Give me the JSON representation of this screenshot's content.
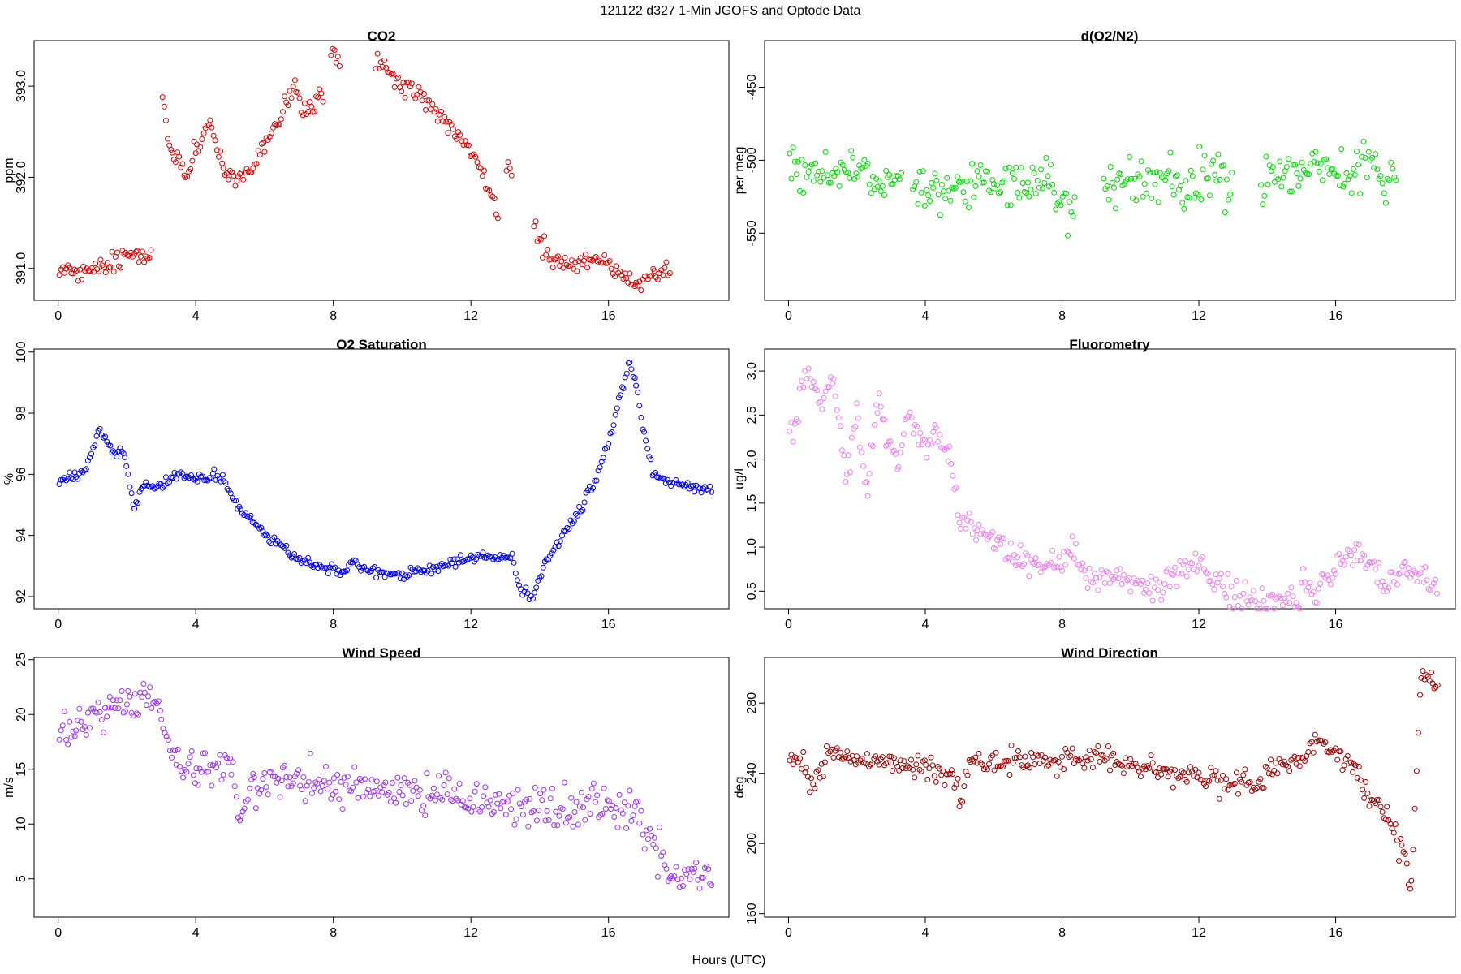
{
  "suptitle": "121122   d327   1-Min  JGOFS and Optode Data",
  "xlabel": "Hours (UTC)",
  "chart_data": [
    {
      "type": "scatter",
      "title": "CO2",
      "ylabel": "ppm",
      "color": "#dd0000",
      "xlim": [
        -0.7,
        19.5
      ],
      "ylim": [
        390.65,
        393.5
      ],
      "xticks": [
        0,
        4,
        8,
        12,
        16
      ],
      "yticks": [
        391.0,
        392.0,
        393.0
      ],
      "ytick_labels": [
        "391.0",
        "392.0",
        "393.0"
      ],
      "segments": [
        [
          0,
          391.0
        ],
        [
          0.7,
          390.95
        ],
        [
          1.5,
          391.05
        ],
        [
          2.3,
          391.15
        ],
        [
          2.7,
          391.18
        ],
        null,
        [
          3.0,
          392.9
        ],
        [
          3.3,
          392.3
        ],
        [
          3.7,
          392.0
        ],
        [
          4.0,
          392.3
        ],
        [
          4.4,
          392.6
        ],
        [
          4.8,
          392.1
        ],
        [
          5.2,
          391.95
        ],
        [
          5.6,
          392.1
        ],
        [
          6.0,
          392.4
        ],
        [
          6.4,
          392.6
        ],
        [
          6.9,
          393.0
        ],
        [
          7.1,
          392.7
        ],
        [
          7.4,
          392.8
        ],
        [
          7.7,
          392.9
        ],
        null,
        [
          7.9,
          393.4
        ],
        [
          8.2,
          393.2
        ],
        null,
        [
          9.2,
          393.25
        ],
        [
          9.8,
          393.05
        ],
        [
          10.5,
          392.9
        ],
        [
          11.0,
          392.7
        ],
        [
          11.5,
          392.5
        ],
        [
          12.0,
          392.3
        ],
        [
          12.4,
          392.0
        ],
        [
          12.8,
          391.6
        ],
        null,
        [
          13.0,
          392.2
        ],
        [
          13.2,
          392.0
        ],
        null,
        [
          13.8,
          391.5
        ],
        [
          14.3,
          391.1
        ],
        [
          15.0,
          391.05
        ],
        [
          15.5,
          391.1
        ],
        [
          16.0,
          391.05
        ],
        [
          16.5,
          390.9
        ],
        [
          16.8,
          390.8
        ],
        [
          17.3,
          390.95
        ],
        [
          17.8,
          390.95
        ]
      ],
      "noise": 0.05
    },
    {
      "type": "scatter",
      "title": "d(O2/N2)",
      "ylabel": "per meg",
      "color": "#00dd00",
      "xlim": [
        -0.7,
        19.5
      ],
      "ylim": [
        -596,
        -418
      ],
      "xticks": [
        0,
        4,
        8,
        12,
        16
      ],
      "yticks": [
        -550,
        -500,
        -450
      ],
      "ytick_labels": [
        "-550",
        "-500",
        "-450"
      ],
      "segments": [
        [
          0,
          -505
        ],
        [
          1.0,
          -510
        ],
        [
          2.0,
          -508
        ],
        [
          2.6,
          -512
        ],
        [
          3.3,
          -520
        ],
        null,
        [
          3.6,
          -518
        ],
        [
          5.0,
          -522
        ],
        [
          6.0,
          -512
        ],
        [
          7.0,
          -520
        ],
        [
          7.6,
          -515
        ],
        [
          8.1,
          -530
        ],
        [
          8.4,
          -532
        ],
        null,
        [
          9.2,
          -520
        ],
        [
          10.5,
          -515
        ],
        [
          12.0,
          -517
        ],
        [
          13.0,
          -510
        ],
        null,
        [
          13.8,
          -510
        ],
        [
          15.0,
          -512
        ],
        [
          16.5,
          -505
        ],
        [
          17.8,
          -510
        ]
      ],
      "noise": 8
    },
    {
      "type": "scatter",
      "title": "O2 Saturation",
      "ylabel": "%",
      "color": "#0000ee",
      "xlim": [
        -0.7,
        19.5
      ],
      "ylim": [
        91.6,
        100.1
      ],
      "xticks": [
        0,
        4,
        8,
        12,
        16
      ],
      "yticks": [
        92,
        94,
        96,
        98,
        100
      ],
      "ytick_labels": [
        "92",
        "94",
        "96",
        "98",
        "100"
      ],
      "segments": [
        [
          0,
          95.8
        ],
        [
          0.5,
          95.9
        ],
        [
          0.8,
          96.2
        ],
        [
          1.2,
          97.5
        ],
        [
          1.6,
          96.7
        ],
        [
          1.9,
          96.8
        ],
        [
          2.2,
          94.8
        ],
        [
          2.5,
          95.7
        ],
        [
          2.9,
          95.6
        ],
        [
          3.5,
          96.0
        ],
        [
          4.0,
          95.8
        ],
        [
          4.5,
          96.0
        ],
        [
          4.8,
          95.8
        ],
        [
          5.3,
          94.9
        ],
        [
          6.0,
          94.1
        ],
        [
          6.8,
          93.3
        ],
        [
          7.5,
          93.0
        ],
        [
          8.3,
          92.8
        ],
        [
          8.6,
          93.2
        ],
        [
          9.0,
          92.8
        ],
        [
          10.0,
          92.7
        ],
        [
          11.0,
          92.9
        ],
        [
          12.0,
          93.3
        ],
        [
          12.5,
          93.3
        ],
        [
          13.0,
          93.3
        ],
        [
          13.2,
          93.3
        ],
        [
          13.4,
          92.3
        ],
        [
          13.8,
          91.9
        ],
        [
          14.1,
          93.0
        ],
        [
          14.5,
          93.7
        ],
        [
          15.0,
          94.5
        ],
        [
          15.5,
          95.5
        ],
        [
          16.0,
          97.0
        ],
        [
          16.4,
          98.8
        ],
        [
          16.6,
          99.7
        ],
        [
          16.8,
          99.0
        ],
        [
          17.0,
          97.5
        ],
        [
          17.3,
          96.0
        ],
        [
          18.0,
          95.7
        ],
        [
          19.0,
          95.5
        ]
      ],
      "noise": 0.08
    },
    {
      "type": "scatter",
      "title": "Fluorometry",
      "ylabel": "ug/l",
      "color": "#ee82ee",
      "xlim": [
        -0.7,
        19.5
      ],
      "ylim": [
        0.3,
        3.25
      ],
      "xticks": [
        0,
        4,
        8,
        12,
        16
      ],
      "yticks": [
        0.5,
        1.0,
        1.5,
        2.0,
        2.5,
        3.0
      ],
      "ytick_labels": [
        "0.5",
        "1.0",
        "1.5",
        "2.0",
        "2.5",
        "3.0"
      ],
      "segments": [
        [
          0,
          2.2
        ],
        [
          0.3,
          2.6
        ],
        [
          0.6,
          3.1
        ],
        [
          0.9,
          2.6
        ],
        [
          1.3,
          2.9
        ],
        [
          1.7,
          1.8
        ],
        [
          2.0,
          2.5
        ],
        [
          2.3,
          1.6
        ],
        [
          2.6,
          2.7
        ],
        [
          2.9,
          2.2
        ],
        [
          3.2,
          1.9
        ],
        [
          3.5,
          2.5
        ],
        [
          3.9,
          2.1
        ],
        [
          4.3,
          2.3
        ],
        [
          4.7,
          2.0
        ],
        [
          5.0,
          1.4
        ],
        [
          5.5,
          1.1
        ],
        [
          6.0,
          1.1
        ],
        [
          6.7,
          0.9
        ],
        [
          7.5,
          0.8
        ],
        [
          8.0,
          0.8
        ],
        [
          8.3,
          0.95
        ],
        [
          8.7,
          0.7
        ],
        [
          9.5,
          0.65
        ],
        [
          10.0,
          0.62
        ],
        [
          11.0,
          0.55
        ],
        [
          11.7,
          0.8
        ],
        [
          12.0,
          0.85
        ],
        [
          12.7,
          0.5
        ],
        [
          13.2,
          0.45
        ],
        [
          13.6,
          0.45
        ],
        [
          14.2,
          0.35
        ],
        [
          14.8,
          0.45
        ],
        [
          15.5,
          0.55
        ],
        [
          16.0,
          0.75
        ],
        [
          16.6,
          1.0
        ],
        [
          17.0,
          0.85
        ],
        [
          17.4,
          0.55
        ],
        [
          18.0,
          0.72
        ],
        [
          18.6,
          0.65
        ],
        [
          19.0,
          0.52
        ]
      ],
      "noise": 0.08
    },
    {
      "type": "scatter",
      "title": "Wind Speed",
      "ylabel": "m/s",
      "color": "#9b30ff",
      "xlim": [
        -0.7,
        19.5
      ],
      "ylim": [
        1.5,
        25.2
      ],
      "xticks": [
        0,
        4,
        8,
        12,
        16
      ],
      "yticks": [
        5,
        10,
        15,
        20,
        25
      ],
      "ytick_labels": [
        "5",
        "10",
        "15",
        "20",
        "25"
      ],
      "segments": [
        [
          0,
          19
        ],
        [
          0.5,
          19
        ],
        [
          1.0,
          19.5
        ],
        [
          1.5,
          21
        ],
        [
          2.0,
          21
        ],
        [
          2.5,
          21.5
        ],
        [
          3.0,
          19.5
        ],
        [
          3.4,
          16
        ],
        [
          4.0,
          14.5
        ],
        [
          4.5,
          15.5
        ],
        [
          5.0,
          16
        ],
        [
          5.3,
          10.5
        ],
        [
          5.7,
          13.5
        ],
        [
          6.5,
          14
        ],
        [
          8.0,
          13.5
        ],
        [
          10.0,
          13.3
        ],
        [
          12.0,
          12.2
        ],
        [
          14.0,
          11.5
        ],
        [
          16.0,
          11.5
        ],
        [
          16.8,
          11.5
        ],
        [
          17.3,
          8
        ],
        [
          17.8,
          5
        ],
        [
          18.5,
          5.5
        ],
        [
          19.0,
          5.5
        ]
      ],
      "noise": 0.9
    },
    {
      "type": "scatter",
      "title": "Wind Direction",
      "ylabel": "deg",
      "color": "#a00000",
      "xlim": [
        -0.7,
        19.5
      ],
      "ylim": [
        158,
        306
      ],
      "xticks": [
        0,
        4,
        8,
        12,
        16
      ],
      "yticks": [
        160,
        200,
        240,
        280
      ],
      "ytick_labels": [
        "160",
        "200",
        "240",
        "280"
      ],
      "segments": [
        [
          0,
          248
        ],
        [
          0.5,
          245
        ],
        [
          0.7,
          232
        ],
        [
          1.2,
          250
        ],
        [
          2.0,
          248
        ],
        [
          3.0,
          245
        ],
        [
          4.0,
          243
        ],
        [
          4.8,
          240
        ],
        [
          5.0,
          225
        ],
        [
          5.3,
          245
        ],
        [
          7.0,
          248
        ],
        [
          9.0,
          248
        ],
        [
          11.0,
          240
        ],
        [
          13.0,
          235
        ],
        [
          13.8,
          232
        ],
        [
          14.0,
          243
        ],
        [
          15.0,
          248
        ],
        [
          15.5,
          258
        ],
        [
          16.5,
          245
        ],
        [
          17.0,
          225
        ],
        [
          17.5,
          215
        ],
        [
          17.9,
          200
        ],
        [
          18.2,
          175
        ],
        [
          18.5,
          295
        ],
        [
          18.8,
          295
        ],
        [
          19.0,
          288
        ]
      ],
      "noise": 3.5
    }
  ]
}
